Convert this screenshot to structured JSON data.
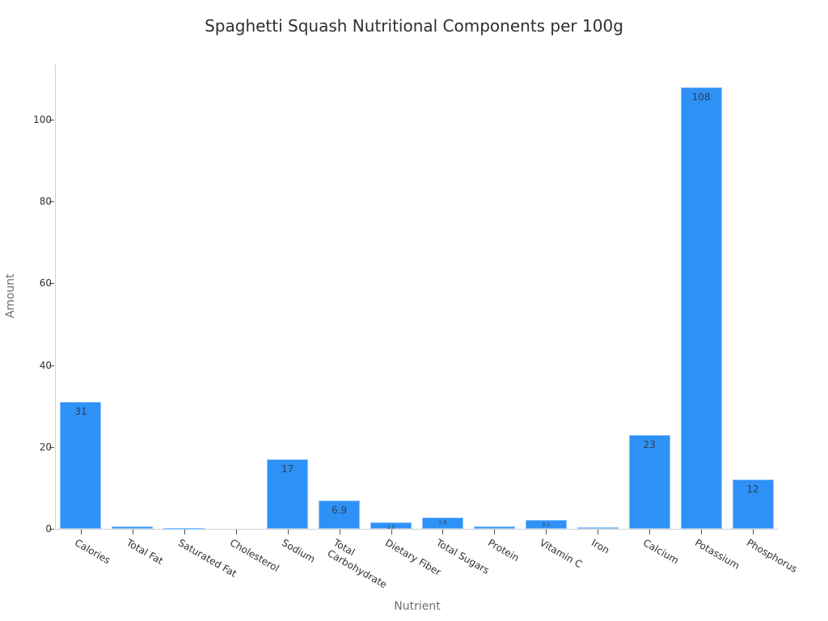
{
  "chart_data": {
    "type": "bar",
    "title": "Spaghetti Squash Nutritional Components per 100g",
    "xlabel": "Nutrient",
    "ylabel": "Amount",
    "ylim": [
      0,
      113
    ],
    "yticks": [
      0,
      20,
      40,
      60,
      80,
      100
    ],
    "grid": false,
    "legend": null,
    "bar_color": "#2e91f6",
    "categories": [
      "Calories",
      "Total Fat",
      "Saturated Fat",
      "Cholesterol",
      "Sodium",
      "Total\nCarbohydrate",
      "Dietary Fiber",
      "Total Sugars",
      "Protein",
      "Vitamin C",
      "Iron",
      "Calcium",
      "Potassium",
      "Phosphorus"
    ],
    "values": [
      31,
      0.6,
      0.1,
      0,
      17,
      6.9,
      1.5,
      2.8,
      0.6,
      2.1,
      0.3,
      23,
      108,
      12
    ],
    "data_labels": [
      "31",
      "0.6",
      "0.1",
      "0",
      "17",
      "6.9",
      "1.5",
      "2.8",
      "0.6",
      "2.1",
      "0.3",
      "23",
      "108",
      "12"
    ]
  }
}
